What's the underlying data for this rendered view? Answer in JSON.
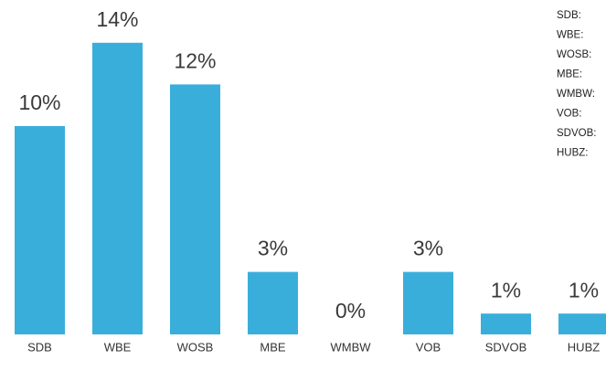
{
  "chart_data": {
    "type": "bar",
    "categories": [
      "SDB",
      "WBE",
      "WOSB",
      "MBE",
      "WMBW",
      "VOB",
      "SDVOB",
      "HUBZ"
    ],
    "values": [
      10,
      14,
      12,
      3,
      0,
      3,
      1,
      1
    ],
    "value_labels": [
      "10%",
      "14%",
      "12%",
      "3%",
      "0%",
      "3%",
      "1%",
      "1%"
    ],
    "color": "#3aaedb",
    "legend": [
      "SDB:",
      "WBE:",
      "WOSB:",
      "MBE:",
      "WMBW:",
      "VOB:",
      "SDVOB:",
      "HUBZ:"
    ]
  }
}
